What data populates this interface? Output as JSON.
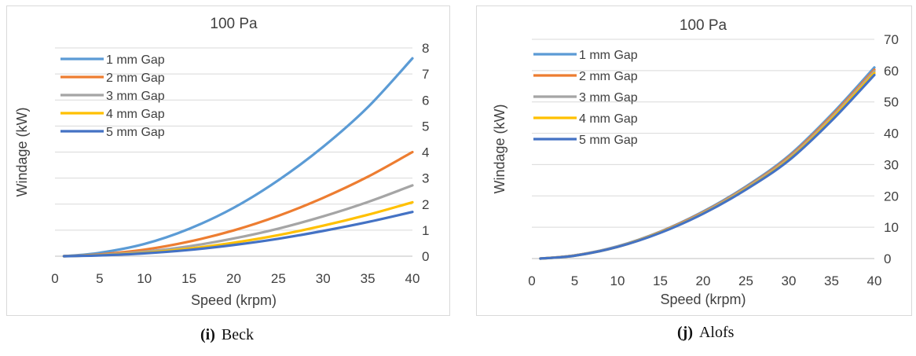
{
  "chart_data": [
    {
      "type": "line",
      "title": "100 Pa",
      "xlabel": "Speed (krpm)",
      "ylabel": "Windage (kW)",
      "xlim": [
        0,
        40
      ],
      "ylim": [
        0,
        8
      ],
      "x_ticks": [
        0,
        5,
        10,
        15,
        20,
        25,
        30,
        35,
        40
      ],
      "y_ticks": [
        0,
        1,
        2,
        3,
        4,
        5,
        6,
        7,
        8
      ],
      "y_axis_side": "right",
      "legend_position": "top-left",
      "grid": "horizontal",
      "x": [
        1,
        5,
        10,
        15,
        20,
        25,
        30,
        35,
        40
      ],
      "series": [
        {
          "name": "1 mm Gap",
          "color": "#5b9bd5",
          "values": [
            0.0,
            0.13,
            0.47,
            1.05,
            1.86,
            2.92,
            4.2,
            5.72,
            7.6
          ]
        },
        {
          "name": "2 mm Gap",
          "color": "#ed7d31",
          "values": [
            0.0,
            0.07,
            0.25,
            0.56,
            0.99,
            1.55,
            2.24,
            3.05,
            4.0
          ]
        },
        {
          "name": "3 mm Gap",
          "color": "#a5a5a5",
          "values": [
            0.0,
            0.05,
            0.17,
            0.38,
            0.68,
            1.06,
            1.53,
            2.08,
            2.72
          ]
        },
        {
          "name": "4 mm Gap",
          "color": "#ffc000",
          "values": [
            0.0,
            0.04,
            0.13,
            0.29,
            0.52,
            0.81,
            1.17,
            1.59,
            2.07
          ]
        },
        {
          "name": "5 mm Gap",
          "color": "#4472c4",
          "values": [
            0.0,
            0.03,
            0.11,
            0.24,
            0.43,
            0.67,
            0.97,
            1.31,
            1.7
          ]
        }
      ]
    },
    {
      "type": "line",
      "title": "100 Pa",
      "xlabel": "Speed (krpm)",
      "ylabel": "Windage (kW)",
      "xlim": [
        0,
        40
      ],
      "ylim": [
        0,
        70
      ],
      "x_ticks": [
        0,
        5,
        10,
        15,
        20,
        25,
        30,
        35,
        40
      ],
      "y_ticks": [
        0,
        10,
        20,
        30,
        40,
        50,
        60,
        70
      ],
      "y_axis_side": "right",
      "legend_position": "top-left",
      "grid": "horizontal",
      "x": [
        1,
        5,
        10,
        15,
        20,
        25,
        30,
        35,
        40
      ],
      "series": [
        {
          "name": "1 mm Gap",
          "color": "#5b9bd5",
          "values": [
            0.0,
            1.0,
            3.9,
            8.6,
            15.0,
            23.0,
            32.8,
            46.0,
            61.0
          ]
        },
        {
          "name": "2 mm Gap",
          "color": "#ed7d31",
          "values": [
            0.0,
            1.0,
            3.8,
            8.5,
            14.8,
            22.7,
            32.4,
            45.5,
            60.3
          ]
        },
        {
          "name": "3 mm Gap",
          "color": "#a5a5a5",
          "values": [
            0.0,
            1.0,
            3.8,
            8.4,
            14.6,
            22.5,
            32.0,
            45.0,
            59.8
          ]
        },
        {
          "name": "4 mm Gap",
          "color": "#ffc000",
          "values": [
            0.0,
            0.9,
            3.7,
            8.3,
            14.4,
            22.2,
            31.6,
            44.5,
            59.2
          ]
        },
        {
          "name": "5 mm Gap",
          "color": "#4472c4",
          "values": [
            0.0,
            0.9,
            3.7,
            8.2,
            14.3,
            22.0,
            31.3,
            44.0,
            58.6
          ]
        }
      ]
    }
  ],
  "captions": [
    {
      "label": "(i)",
      "text": "Beck"
    },
    {
      "label": "(j)",
      "text": "Alofs"
    }
  ]
}
